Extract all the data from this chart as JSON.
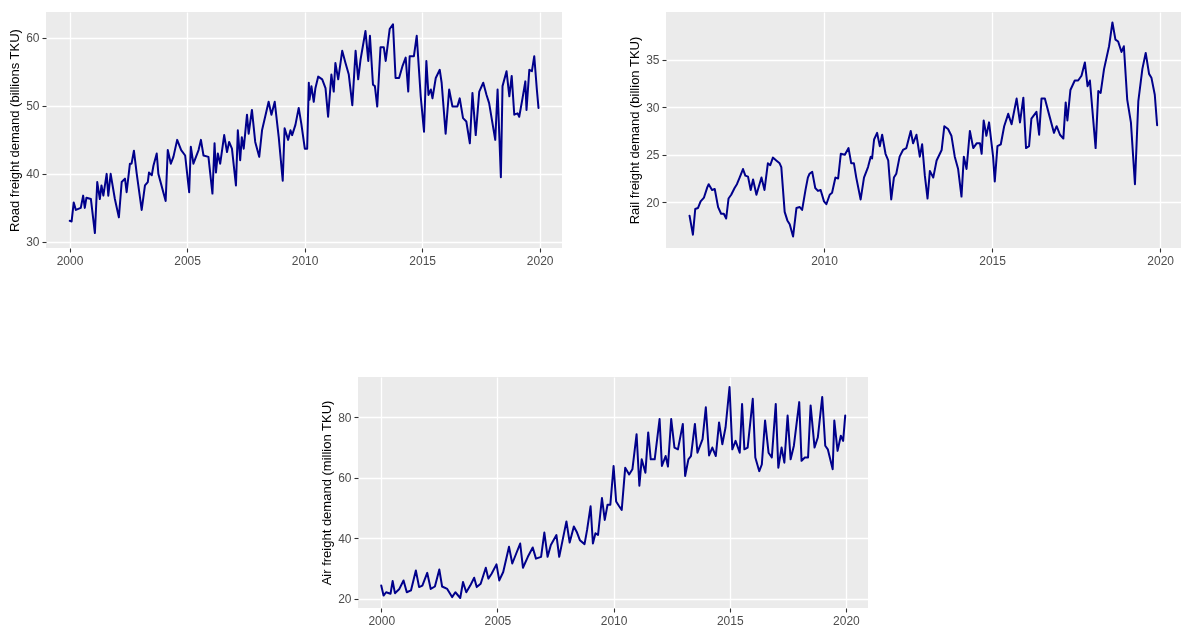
{
  "chart_data": [
    {
      "type": "line",
      "ylabel": "Road freight demand (billions TKU)",
      "grid": true,
      "xlim": [
        1999,
        2020.95
      ],
      "xticks": [
        2000,
        2005,
        2010,
        2015,
        2020
      ],
      "ylim": [
        29.1,
        63.8
      ],
      "yticks": [
        30,
        40,
        50,
        60
      ],
      "x": [
        2000.01,
        2000.09,
        2000.18,
        2000.27,
        2000.48,
        2000.58,
        2000.65,
        2000.72,
        2000.91,
        2001.08,
        2001.18,
        2001.29,
        2001.36,
        2001.44,
        2001.58,
        2001.65,
        2001.75,
        2001.93,
        2002.1,
        2002.22,
        2002.36,
        2002.43,
        2002.57,
        2002.64,
        2002.74,
        2002.86,
        2003.07,
        2003.21,
        2003.33,
        2003.38,
        2003.5,
        2003.57,
        2003.71,
        2003.78,
        2004.09,
        2004.18,
        2004.31,
        2004.42,
        2004.58,
        2004.75,
        2004.92,
        2005.09,
        2005.16,
        2005.27,
        2005.49,
        2005.59,
        2005.7,
        2005.91,
        2006.08,
        2006.17,
        2006.23,
        2006.31,
        2006.41,
        2006.58,
        2006.7,
        2006.79,
        2006.91,
        2007.08,
        2007.16,
        2007.26,
        2007.33,
        2007.41,
        2007.55,
        2007.62,
        2007.76,
        2007.9,
        2008.07,
        2008.19,
        2008.47,
        2008.59,
        2008.73,
        2008.9,
        2009.07,
        2009.15,
        2009.3,
        2009.4,
        2009.47,
        2009.61,
        2009.75,
        2009.86,
        2010.01,
        2010.11,
        2010.18,
        2010.21,
        2010.29,
        2010.39,
        2010.46,
        2010.58,
        2010.75,
        2010.89,
        2011.0,
        2011.14,
        2011.24,
        2011.31,
        2011.43,
        2011.6,
        2011.74,
        2011.88,
        2012.03,
        2012.17,
        2012.28,
        2012.38,
        2012.59,
        2012.71,
        2012.78,
        2012.91,
        2012.99,
        2013.09,
        2013.23,
        2013.37,
        2013.45,
        2013.62,
        2013.76,
        2013.87,
        2014.02,
        2014.16,
        2014.3,
        2014.41,
        2014.47,
        2014.65,
        2014.77,
        2014.94,
        2015.08,
        2015.18,
        2015.27,
        2015.37,
        2015.44,
        2015.58,
        2015.75,
        2015.83,
        2016.0,
        2016.15,
        2016.29,
        2016.5,
        2016.6,
        2016.74,
        2016.88,
        2017.03,
        2017.14,
        2017.28,
        2017.43,
        2017.6,
        2017.74,
        2017.85,
        2018.11,
        2018.21,
        2018.35,
        2018.42,
        2018.59,
        2018.71,
        2018.81,
        2018.92,
        2019.06,
        2019.13,
        2019.27,
        2019.39,
        2019.44,
        2019.56,
        2019.67,
        2019.77,
        2019.88,
        2019.95
      ],
      "series": [
        {
          "color": "#00008b",
          "values": [
            33.1,
            33.0,
            35.8,
            34.7,
            35.0,
            36.8,
            35.0,
            36.5,
            36.3,
            31.3,
            38.8,
            36.3,
            38.3,
            36.8,
            40.0,
            36.8,
            40.0,
            36.3,
            33.6,
            38.8,
            39.3,
            37.3,
            41.5,
            41.5,
            43.4,
            40.0,
            34.7,
            38.3,
            38.8,
            40.2,
            39.8,
            41.2,
            43.0,
            40.0,
            36.0,
            43.5,
            41.5,
            42.5,
            45.0,
            43.5,
            42.7,
            37.3,
            44.0,
            41.5,
            43.5,
            45.0,
            42.7,
            42.5,
            37.1,
            44.5,
            40.2,
            43.0,
            41.5,
            45.7,
            43.2,
            44.7,
            43.7,
            38.3,
            46.4,
            42.0,
            45.4,
            43.7,
            48.7,
            45.9,
            49.4,
            44.7,
            42.5,
            46.4,
            50.6,
            48.7,
            50.6,
            45.4,
            39.0,
            46.7,
            45.0,
            46.4,
            45.7,
            47.2,
            49.7,
            47.4,
            43.7,
            43.7,
            53.4,
            50.9,
            52.9,
            50.6,
            52.6,
            54.3,
            53.9,
            52.6,
            48.4,
            54.6,
            52.1,
            56.3,
            53.9,
            58.1,
            56.3,
            54.6,
            50.1,
            58.1,
            53.9,
            56.8,
            61.0,
            56.6,
            60.3,
            53.1,
            52.9,
            49.9,
            58.6,
            58.6,
            56.6,
            61.3,
            62.0,
            54.1,
            54.1,
            55.8,
            57.1,
            52.1,
            57.3,
            57.3,
            60.3,
            51.4,
            46.2,
            56.6,
            51.6,
            52.4,
            51.1,
            54.1,
            55.3,
            53.4,
            45.9,
            52.4,
            49.9,
            49.9,
            51.1,
            48.2,
            47.7,
            44.5,
            51.9,
            45.7,
            52.1,
            53.4,
            51.6,
            50.4,
            45.0,
            52.4,
            39.5,
            52.9,
            55.1,
            51.4,
            54.4,
            48.7,
            48.9,
            48.4,
            51.1,
            53.6,
            49.4,
            55.3,
            55.1,
            57.3,
            52.4,
            49.7
          ]
        }
      ]
    },
    {
      "type": "line",
      "ylabel": "Rail freight demand (billion TKU)",
      "grid": true,
      "xlim": [
        2005.3,
        2020.62
      ],
      "xticks": [
        2010,
        2015,
        2020
      ],
      "ylim": [
        15.2,
        40.0
      ],
      "yticks": [
        20,
        25,
        30,
        35
      ],
      "x": [
        2006.0,
        2006.1,
        2006.17,
        2006.25,
        2006.33,
        2006.43,
        2006.53,
        2006.57,
        2006.67,
        2006.75,
        2006.85,
        2006.94,
        2007.02,
        2007.09,
        2007.16,
        2007.24,
        2007.34,
        2007.41,
        2007.49,
        2007.59,
        2007.66,
        2007.74,
        2007.82,
        2007.89,
        2007.99,
        2008.14,
        2008.23,
        2008.33,
        2008.4,
        2008.48,
        2008.58,
        2008.68,
        2008.73,
        2008.83,
        2008.91,
        2008.98,
        2009.08,
        2009.18,
        2009.28,
        2009.35,
        2009.45,
        2009.52,
        2009.57,
        2009.65,
        2009.74,
        2009.82,
        2009.9,
        2010.0,
        2010.07,
        2010.17,
        2010.24,
        2010.34,
        2010.42,
        2010.5,
        2010.62,
        2010.73,
        2010.81,
        2010.89,
        2010.96,
        2011.09,
        2011.19,
        2011.31,
        2011.39,
        2011.43,
        2011.49,
        2011.58,
        2011.66,
        2011.73,
        2011.83,
        2011.91,
        2012.0,
        2012.08,
        2012.15,
        2012.25,
        2012.35,
        2012.45,
        2012.58,
        2012.65,
        2012.75,
        2012.85,
        2012.92,
        2013.0,
        2013.08,
        2013.15,
        2013.25,
        2013.35,
        2013.5,
        2013.58,
        2013.69,
        2013.79,
        2013.89,
        2013.99,
        2014.09,
        2014.16,
        2014.24,
        2014.34,
        2014.44,
        2014.54,
        2014.64,
        2014.69,
        2014.75,
        2014.83,
        2014.91,
        2015.03,
        2015.08,
        2015.16,
        2015.26,
        2015.36,
        2015.48,
        2015.58,
        2015.73,
        2015.83,
        2015.93,
        2016.01,
        2016.1,
        2016.17,
        2016.32,
        2016.4,
        2016.47,
        2016.57,
        2016.72,
        2016.84,
        2016.92,
        2017.02,
        2017.12,
        2017.19,
        2017.24,
        2017.33,
        2017.46,
        2017.56,
        2017.66,
        2017.76,
        2017.84,
        2017.91,
        2018.08,
        2018.16,
        2018.23,
        2018.33,
        2018.48,
        2018.58,
        2018.67,
        2018.75,
        2018.85,
        2018.92,
        2019.02,
        2019.13,
        2019.25,
        2019.35,
        2019.47,
        2019.57,
        2019.67,
        2019.74,
        2019.84,
        2019.91
      ],
      "series": [
        {
          "color": "#00008b",
          "values": [
            18.6,
            16.6,
            19.3,
            19.4,
            20.1,
            20.5,
            21.6,
            21.9,
            21.3,
            21.4,
            19.5,
            18.8,
            18.8,
            18.3,
            20.4,
            20.8,
            21.5,
            21.9,
            22.6,
            23.5,
            22.8,
            22.7,
            21.3,
            22.4,
            20.8,
            22.6,
            21.3,
            24.1,
            23.9,
            24.7,
            24.4,
            24.1,
            23.7,
            19.0,
            18.1,
            17.7,
            16.4,
            19.4,
            19.5,
            19.2,
            21.3,
            22.6,
            23.0,
            23.2,
            21.5,
            21.2,
            21.3,
            20.1,
            19.8,
            20.8,
            21.0,
            22.6,
            22.5,
            25.1,
            25.0,
            25.7,
            24.1,
            24.1,
            22.6,
            20.3,
            22.6,
            23.7,
            24.8,
            24.6,
            26.6,
            27.3,
            25.9,
            27.1,
            25.1,
            24.4,
            20.3,
            22.6,
            23.0,
            24.8,
            25.5,
            25.7,
            27.5,
            26.2,
            27.1,
            24.8,
            26.1,
            22.8,
            20.4,
            23.3,
            22.6,
            24.4,
            25.5,
            28.0,
            27.7,
            27.0,
            24.8,
            23.5,
            20.6,
            24.8,
            23.5,
            27.5,
            25.7,
            26.2,
            26.2,
            25.1,
            28.6,
            27.0,
            28.4,
            24.8,
            22.2,
            25.9,
            26.1,
            28.0,
            29.3,
            28.2,
            30.9,
            28.4,
            31.0,
            25.7,
            25.9,
            28.8,
            29.5,
            27.1,
            30.9,
            30.9,
            28.9,
            27.3,
            28.0,
            27.1,
            26.7,
            30.5,
            28.6,
            31.8,
            32.8,
            32.8,
            33.3,
            34.7,
            32.2,
            32.8,
            25.7,
            31.7,
            31.5,
            34.0,
            36.4,
            38.9,
            37.1,
            36.9,
            35.8,
            36.4,
            30.8,
            28.4,
            21.9,
            30.6,
            34.0,
            35.7,
            33.5,
            33.1,
            31.3,
            28.1
          ]
        }
      ]
    },
    {
      "type": "line",
      "ylabel": "Air freight demand (million TKU)",
      "grid": true,
      "xlim": [
        1999,
        2020.95
      ],
      "xticks": [
        2000,
        2005,
        2010,
        2015,
        2020
      ],
      "ylim": [
        17,
        93.3
      ],
      "yticks": [
        20,
        40,
        60,
        80
      ],
      "x": [
        2000.0,
        2000.1,
        2000.21,
        2000.4,
        2000.49,
        2000.59,
        2000.78,
        2000.96,
        2001.1,
        2001.28,
        2001.49,
        2001.63,
        2001.77,
        2001.98,
        2002.13,
        2002.31,
        2002.5,
        2002.62,
        2002.84,
        2003.05,
        2003.19,
        2003.4,
        2003.52,
        2003.66,
        2003.83,
        2004.0,
        2004.11,
        2004.28,
        2004.5,
        2004.61,
        2004.75,
        2004.96,
        2005.08,
        2005.25,
        2005.5,
        2005.64,
        2005.81,
        2005.98,
        2006.1,
        2006.31,
        2006.52,
        2006.66,
        2006.88,
        2007.02,
        2007.16,
        2007.3,
        2007.54,
        2007.66,
        2007.97,
        2008.11,
        2008.29,
        2008.41,
        2008.55,
        2008.75,
        2008.86,
        2009.01,
        2009.11,
        2009.22,
        2009.33,
        2009.5,
        2009.62,
        2009.74,
        2009.86,
        2010.0,
        2010.11,
        2010.24,
        2010.35,
        2010.5,
        2010.67,
        2010.81,
        2010.99,
        2011.11,
        2011.21,
        2011.37,
        2011.49,
        2011.6,
        2011.77,
        2011.98,
        2012.08,
        2012.24,
        2012.34,
        2012.48,
        2012.62,
        2012.77,
        2012.98,
        2013.08,
        2013.22,
        2013.33,
        2013.5,
        2013.61,
        2013.83,
        2013.97,
        2014.11,
        2014.25,
        2014.4,
        2014.54,
        2014.68,
        2014.82,
        2014.99,
        2015.11,
        2015.25,
        2015.43,
        2015.53,
        2015.63,
        2015.77,
        2015.99,
        2016.1,
        2016.27,
        2016.38,
        2016.52,
        2016.67,
        2016.81,
        2016.98,
        2017.09,
        2017.23,
        2017.35,
        2017.49,
        2017.62,
        2017.76,
        2017.99,
        2018.09,
        2018.23,
        2018.37,
        2018.48,
        2018.65,
        2018.79,
        2018.98,
        2019.11,
        2019.22,
        2019.43,
        2019.5,
        2019.64,
        2019.78,
        2019.88,
        2019.97
      ],
      "series": [
        {
          "color": "#00008b",
          "values": [
            24.4,
            21.1,
            22.2,
            21.7,
            25.9,
            21.9,
            23.3,
            26.1,
            22.2,
            22.8,
            29.4,
            23.9,
            24.4,
            28.6,
            23.3,
            24.1,
            29.7,
            24.1,
            23.3,
            20.6,
            22.2,
            20.3,
            25.6,
            22.2,
            24.4,
            27.0,
            23.9,
            25.0,
            30.3,
            26.7,
            28.3,
            31.4,
            26.1,
            28.9,
            37.2,
            31.7,
            35.0,
            38.3,
            30.3,
            33.9,
            37.0,
            33.3,
            33.9,
            41.9,
            33.9,
            37.8,
            41.1,
            33.9,
            45.6,
            38.6,
            43.9,
            42.2,
            39.4,
            38.1,
            42.8,
            50.6,
            38.3,
            41.7,
            41.1,
            53.3,
            46.1,
            51.1,
            51.1,
            63.9,
            52.2,
            50.6,
            49.4,
            63.3,
            61.1,
            62.8,
            74.4,
            57.4,
            66.1,
            61.7,
            75.0,
            66.1,
            66.1,
            79.4,
            63.9,
            67.2,
            63.7,
            79.4,
            70.0,
            69.4,
            77.8,
            60.6,
            66.1,
            67.2,
            77.8,
            68.3,
            72.8,
            83.3,
            67.4,
            70.0,
            67.2,
            78.3,
            71.1,
            76.7,
            90.0,
            69.4,
            72.2,
            68.3,
            84.4,
            69.4,
            70.0,
            86.1,
            66.7,
            62.2,
            64.4,
            78.9,
            68.3,
            66.7,
            84.4,
            63.3,
            70.0,
            65.0,
            80.6,
            66.1,
            70.6,
            85.0,
            65.6,
            66.7,
            66.7,
            83.9,
            70.0,
            73.3,
            86.7,
            70.6,
            69.4,
            62.8,
            78.9,
            68.9,
            73.9,
            72.2,
            80.6
          ]
        }
      ]
    }
  ]
}
